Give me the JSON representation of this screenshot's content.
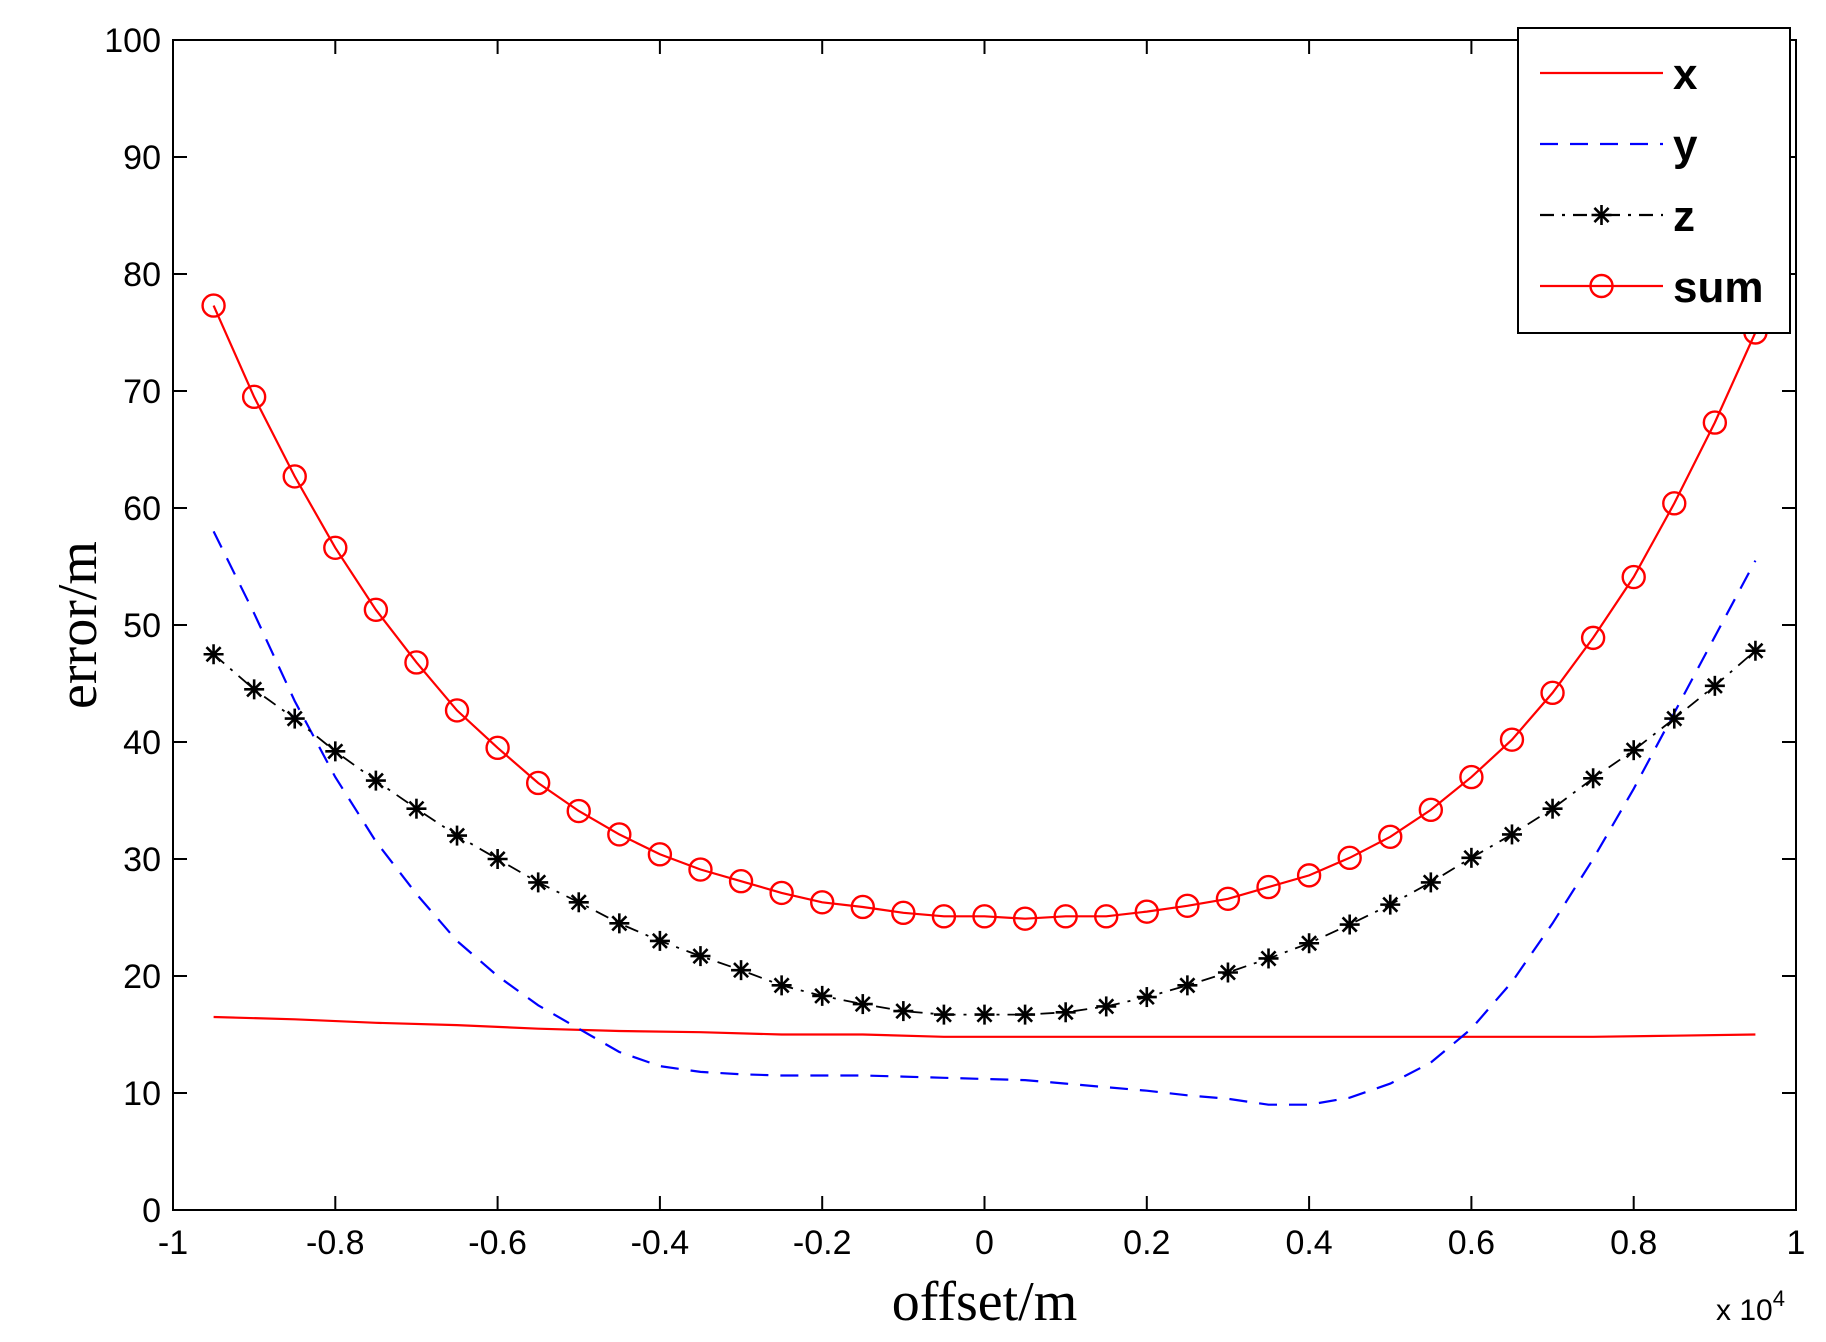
{
  "chart_data": {
    "type": "line",
    "title": "",
    "xlabel": "offset/m",
    "ylabel": "error/m",
    "x_multiplier_base": "x 10",
    "x_multiplier_exp": "4",
    "xlim": [
      -1,
      1
    ],
    "ylim": [
      0,
      100
    ],
    "x_ticks": [
      -1,
      -0.8,
      -0.6,
      -0.4,
      -0.2,
      0,
      0.2,
      0.4,
      0.6,
      0.8,
      1
    ],
    "x_tick_labels": [
      "-1",
      "-0.8",
      "-0.6",
      "-0.4",
      "-0.2",
      "0",
      "0.2",
      "0.4",
      "0.6",
      "0.8",
      "1"
    ],
    "y_ticks": [
      0,
      10,
      20,
      30,
      40,
      50,
      60,
      70,
      80,
      90,
      100
    ],
    "y_tick_labels": [
      "0",
      "10",
      "20",
      "30",
      "40",
      "50",
      "60",
      "70",
      "80",
      "90",
      "100"
    ],
    "grid": false,
    "legend_position": "top-right",
    "series": [
      {
        "name": "x",
        "color": "#ff0000",
        "style": "solid",
        "marker": "none",
        "x": [
          -0.95,
          -0.85,
          -0.75,
          -0.65,
          -0.55,
          -0.45,
          -0.35,
          -0.25,
          -0.15,
          -0.05,
          0.05,
          0.15,
          0.25,
          0.35,
          0.45,
          0.55,
          0.65,
          0.75,
          0.85,
          0.95
        ],
        "values": [
          16.5,
          16.3,
          16.0,
          15.8,
          15.5,
          15.3,
          15.2,
          15.0,
          15.0,
          14.8,
          14.8,
          14.8,
          14.8,
          14.8,
          14.8,
          14.8,
          14.8,
          14.8,
          14.9,
          15.0
        ]
      },
      {
        "name": "y",
        "color": "#0000ff",
        "style": "dashed",
        "marker": "none",
        "x": [
          -0.95,
          -0.9,
          -0.85,
          -0.8,
          -0.75,
          -0.7,
          -0.65,
          -0.6,
          -0.55,
          -0.5,
          -0.45,
          -0.4,
          -0.35,
          -0.3,
          -0.25,
          -0.2,
          -0.15,
          -0.1,
          -0.05,
          0,
          0.05,
          0.1,
          0.15,
          0.2,
          0.25,
          0.3,
          0.35,
          0.4,
          0.45,
          0.5,
          0.55,
          0.6,
          0.65,
          0.7,
          0.75,
          0.8,
          0.85,
          0.9,
          0.95
        ],
        "values": [
          58.0,
          51.0,
          43.5,
          37.0,
          31.5,
          27.0,
          23.0,
          20.0,
          17.5,
          15.5,
          13.5,
          12.3,
          11.8,
          11.6,
          11.5,
          11.5,
          11.5,
          11.4,
          11.3,
          11.2,
          11.1,
          10.8,
          10.5,
          10.2,
          9.8,
          9.5,
          9.0,
          9.0,
          9.6,
          10.8,
          12.6,
          15.5,
          19.5,
          24.5,
          30.0,
          36.0,
          42.5,
          49.0,
          55.5
        ]
      },
      {
        "name": "z",
        "color": "#000000",
        "style": "dash-dot",
        "marker": "star",
        "x": [
          -0.95,
          -0.9,
          -0.85,
          -0.8,
          -0.75,
          -0.7,
          -0.65,
          -0.6,
          -0.55,
          -0.5,
          -0.45,
          -0.4,
          -0.35,
          -0.3,
          -0.25,
          -0.2,
          -0.15,
          -0.1,
          -0.05,
          0,
          0.05,
          0.1,
          0.15,
          0.2,
          0.25,
          0.3,
          0.35,
          0.4,
          0.45,
          0.5,
          0.55,
          0.6,
          0.65,
          0.7,
          0.75,
          0.8,
          0.85,
          0.9,
          0.95
        ],
        "values": [
          47.5,
          44.5,
          42.0,
          39.2,
          36.7,
          34.3,
          32.0,
          30.0,
          28.0,
          26.3,
          24.5,
          23.0,
          21.7,
          20.5,
          19.2,
          18.3,
          17.6,
          17.0,
          16.7,
          16.7,
          16.7,
          16.9,
          17.4,
          18.2,
          19.2,
          20.3,
          21.5,
          22.8,
          24.4,
          26.1,
          28.0,
          30.1,
          32.1,
          34.3,
          36.9,
          39.3,
          42.0,
          44.8,
          47.8
        ]
      },
      {
        "name": "sum",
        "color": "#ff0000",
        "style": "solid",
        "marker": "circle",
        "x": [
          -0.95,
          -0.9,
          -0.85,
          -0.8,
          -0.75,
          -0.7,
          -0.65,
          -0.6,
          -0.55,
          -0.5,
          -0.45,
          -0.4,
          -0.35,
          -0.3,
          -0.25,
          -0.2,
          -0.15,
          -0.1,
          -0.05,
          0,
          0.05,
          0.1,
          0.15,
          0.2,
          0.25,
          0.3,
          0.35,
          0.4,
          0.45,
          0.5,
          0.55,
          0.6,
          0.65,
          0.7,
          0.75,
          0.8,
          0.85,
          0.9,
          0.95
        ],
        "values": [
          77.3,
          69.5,
          62.7,
          56.6,
          51.3,
          46.8,
          42.7,
          39.5,
          36.5,
          34.1,
          32.1,
          30.4,
          29.1,
          28.1,
          27.1,
          26.3,
          25.9,
          25.4,
          25.1,
          25.1,
          24.9,
          25.1,
          25.1,
          25.5,
          26.0,
          26.6,
          27.6,
          28.6,
          30.1,
          31.9,
          34.2,
          37.0,
          40.2,
          44.2,
          48.9,
          54.1,
          60.4,
          67.3,
          75.0
        ]
      }
    ]
  }
}
